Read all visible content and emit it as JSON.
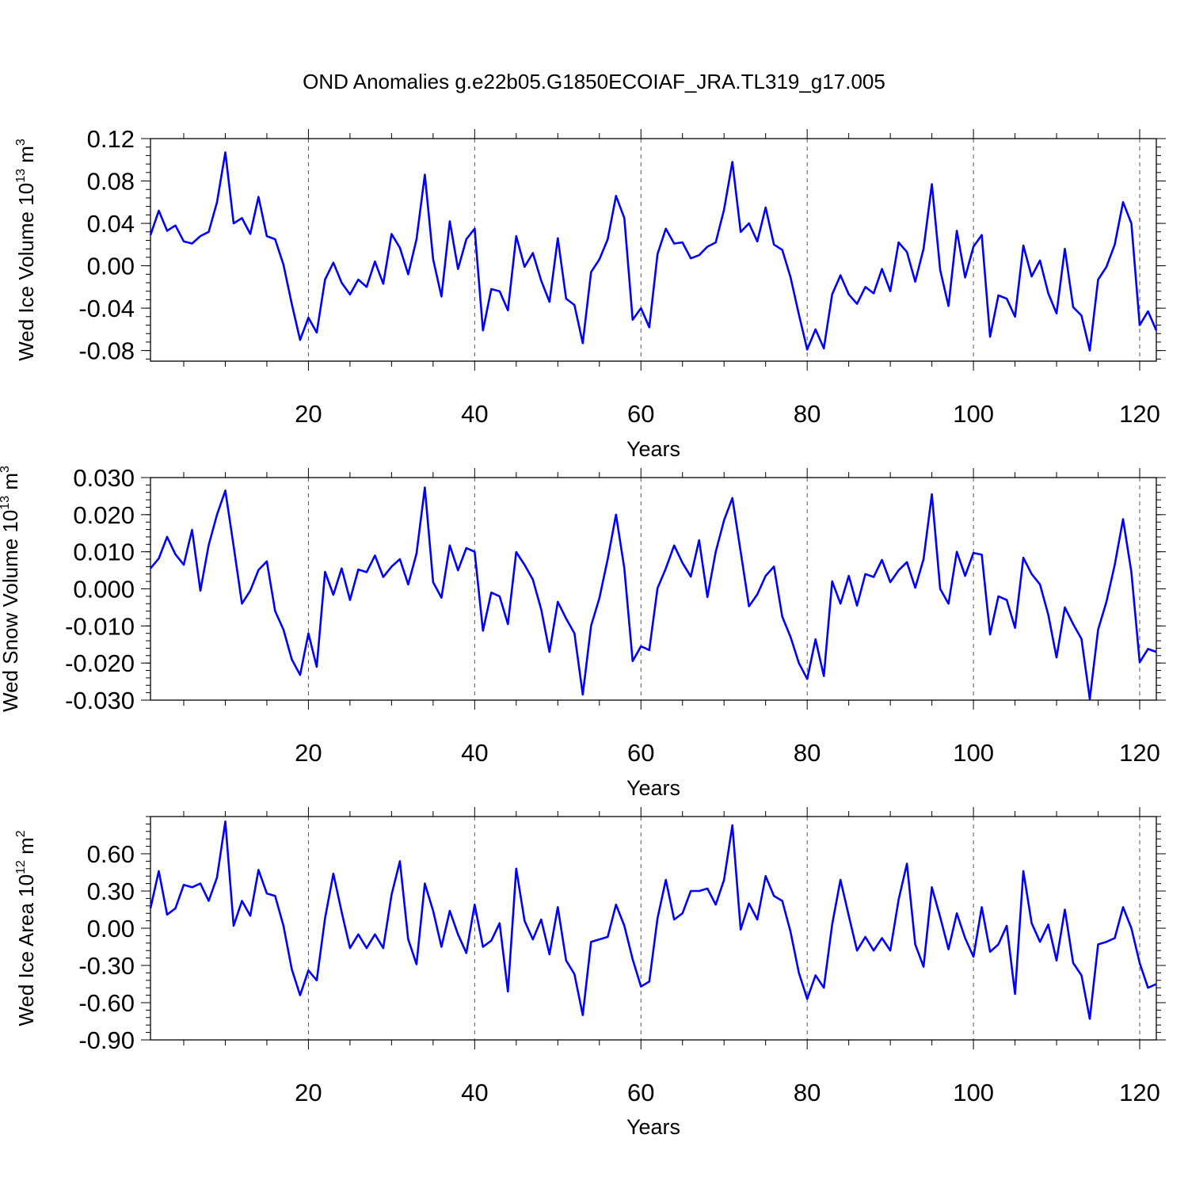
{
  "title": "OND Anomalies g.e22b05.G1850ECOIAF_JRA.TL319_g17.005",
  "colors": {
    "line": "#0000ff",
    "axis": "#000000",
    "refline": "#555555"
  },
  "chart_data": [
    {
      "type": "line",
      "ylabel": {
        "main": "Wed Ice Volume 10",
        "exp": "13",
        "unit_main": " m",
        "unit_exp": "3"
      },
      "xlabel": "Years",
      "xlim": [
        1,
        122
      ],
      "ylim": [
        -0.09,
        0.12
      ],
      "xticks": [
        20,
        40,
        60,
        80,
        100,
        120
      ],
      "xtick_labels": [
        "20",
        "40",
        "60",
        "80",
        "100",
        "120"
      ],
      "yticks": [
        -0.08,
        -0.04,
        0.0,
        0.04,
        0.08,
        0.12
      ],
      "ytick_labels": [
        "-0.08",
        "-0.04",
        "0.00",
        "0.04",
        "0.08",
        "0.12"
      ],
      "ref_lines_x": [
        20,
        40,
        60,
        80,
        100,
        120
      ],
      "series": [
        {
          "x_start": 1,
          "values": [
            0.029,
            0.052,
            0.033,
            0.038,
            0.023,
            0.021,
            0.028,
            0.032,
            0.06,
            0.107,
            0.04,
            0.045,
            0.03,
            0.065,
            0.028,
            0.025,
            0.001,
            -0.036,
            -0.07,
            -0.049,
            -0.063,
            -0.013,
            0.003,
            -0.016,
            -0.027,
            -0.013,
            -0.02,
            0.004,
            -0.017,
            0.03,
            0.017,
            -0.008,
            0.025,
            0.086,
            0.006,
            -0.029,
            0.042,
            -0.003,
            0.025,
            0.035,
            -0.061,
            -0.022,
            -0.024,
            -0.042,
            0.028,
            -0.001,
            0.012,
            -0.014,
            -0.034,
            0.026,
            -0.031,
            -0.037,
            -0.073,
            -0.006,
            0.006,
            0.025,
            0.066,
            0.045,
            -0.051,
            -0.04,
            -0.058,
            0.011,
            0.035,
            0.021,
            0.022,
            0.007,
            0.01,
            0.018,
            0.022,
            0.053,
            0.098,
            0.032,
            0.04,
            0.023,
            0.055,
            0.02,
            0.015,
            -0.011,
            -0.046,
            -0.079,
            -0.06,
            -0.078,
            -0.027,
            -0.009,
            -0.027,
            -0.036,
            -0.02,
            -0.026,
            -0.003,
            -0.024,
            0.022,
            0.013,
            -0.015,
            0.016,
            0.077,
            -0.004,
            -0.038,
            0.033,
            -0.011,
            0.018,
            0.029,
            -0.067,
            -0.028,
            -0.031,
            -0.048,
            0.019,
            -0.01,
            0.005,
            -0.026,
            -0.045,
            0.016,
            -0.039,
            -0.047,
            -0.08,
            -0.013,
            -0.001,
            0.02,
            0.06,
            0.04,
            -0.056,
            -0.043,
            -0.061
          ]
        }
      ]
    },
    {
      "type": "line",
      "ylabel": {
        "main": "Wed Snow Volume 10",
        "exp": "13",
        "unit_main": " m",
        "unit_exp": "3"
      },
      "xlabel": "Years",
      "xlim": [
        1,
        122
      ],
      "ylim": [
        -0.03,
        0.03
      ],
      "xticks": [
        20,
        40,
        60,
        80,
        100,
        120
      ],
      "xtick_labels": [
        "20",
        "40",
        "60",
        "80",
        "100",
        "120"
      ],
      "yticks": [
        -0.03,
        -0.02,
        -0.01,
        0.0,
        0.01,
        0.02,
        0.03
      ],
      "ytick_labels": [
        "-0.030",
        "-0.020",
        "-0.010",
        "0.000",
        "0.010",
        "0.020",
        "0.030"
      ],
      "ref_lines_x": [
        20,
        40,
        60,
        80,
        100,
        120
      ],
      "series": [
        {
          "x_start": 1,
          "values": [
            0.0055,
            0.0082,
            0.014,
            0.0093,
            0.0065,
            0.0159,
            -0.0005,
            0.0118,
            0.02,
            0.0265,
            0.0115,
            -0.004,
            -0.0005,
            0.0051,
            0.0074,
            -0.006,
            -0.011,
            -0.019,
            -0.0232,
            -0.012,
            -0.021,
            0.0046,
            -0.0016,
            0.0055,
            -0.003,
            0.0052,
            0.0045,
            0.009,
            0.0032,
            0.006,
            0.008,
            0.0012,
            0.0095,
            0.0273,
            0.0018,
            -0.0024,
            0.0117,
            0.005,
            0.011,
            0.01,
            -0.0113,
            -0.001,
            -0.002,
            -0.0095,
            0.0099,
            0.0065,
            0.0025,
            -0.0055,
            -0.017,
            -0.0035,
            -0.008,
            -0.012,
            -0.0285,
            -0.01,
            -0.0025,
            0.008,
            0.02,
            0.0055,
            -0.0195,
            -0.0155,
            -0.0165,
            0.0002,
            0.0055,
            0.0117,
            0.007,
            0.0033,
            0.0131,
            -0.0022,
            0.01,
            0.0185,
            0.0245,
            0.01,
            -0.0047,
            -0.0015,
            0.0035,
            0.006,
            -0.0075,
            -0.013,
            -0.02,
            -0.0243,
            -0.0136,
            -0.0235,
            0.002,
            -0.004,
            0.0035,
            -0.0045,
            0.004,
            0.0032,
            0.0078,
            0.0018,
            0.005,
            0.0072,
            0.0003,
            0.008,
            0.0255,
            0.0,
            -0.004,
            0.01,
            0.0035,
            0.0097,
            0.0092,
            -0.0123,
            -0.002,
            -0.003,
            -0.0105,
            0.0084,
            0.004,
            0.0012,
            -0.007,
            -0.0185,
            -0.005,
            -0.0095,
            -0.0135,
            -0.0297,
            -0.011,
            -0.0035,
            0.0065,
            0.0188,
            0.0045,
            -0.0198,
            -0.0162,
            -0.017
          ]
        }
      ]
    },
    {
      "type": "line",
      "ylabel": {
        "main": "Wed Ice Area 10",
        "exp": "12",
        "unit_main": " m",
        "unit_exp": "2"
      },
      "xlabel": "Years",
      "xlim": [
        1,
        122
      ],
      "ylim": [
        -0.9,
        0.9
      ],
      "xticks": [
        20,
        40,
        60,
        80,
        100,
        120
      ],
      "xtick_labels": [
        "20",
        "40",
        "60",
        "80",
        "100",
        "120"
      ],
      "yticks": [
        -0.9,
        -0.6,
        -0.3,
        0.0,
        0.3,
        0.6
      ],
      "ytick_labels": [
        "-0.90",
        "-0.60",
        "-0.30",
        "0.00",
        "0.30",
        "0.60"
      ],
      "ref_lines_x": [
        20,
        40,
        60,
        80,
        100,
        120
      ],
      "series": [
        {
          "x_start": 1,
          "values": [
            0.16,
            0.46,
            0.11,
            0.16,
            0.35,
            0.33,
            0.36,
            0.22,
            0.41,
            0.86,
            0.02,
            0.22,
            0.1,
            0.47,
            0.28,
            0.26,
            0.02,
            -0.33,
            -0.54,
            -0.34,
            -0.42,
            0.08,
            0.44,
            0.13,
            -0.16,
            -0.05,
            -0.16,
            -0.05,
            -0.16,
            0.27,
            0.54,
            -0.09,
            -0.29,
            0.36,
            0.14,
            -0.15,
            0.14,
            -0.05,
            -0.2,
            0.19,
            -0.15,
            -0.1,
            0.04,
            -0.51,
            0.48,
            0.06,
            -0.09,
            0.07,
            -0.21,
            0.17,
            -0.26,
            -0.37,
            -0.7,
            -0.11,
            -0.09,
            -0.07,
            0.19,
            0.02,
            -0.25,
            -0.47,
            -0.43,
            0.08,
            0.39,
            0.07,
            0.12,
            0.3,
            0.3,
            0.32,
            0.19,
            0.39,
            0.83,
            -0.01,
            0.2,
            0.07,
            0.42,
            0.26,
            0.22,
            -0.03,
            -0.36,
            -0.57,
            -0.38,
            -0.48,
            0.03,
            0.39,
            0.1,
            -0.18,
            -0.07,
            -0.18,
            -0.08,
            -0.18,
            0.23,
            0.52,
            -0.13,
            -0.31,
            0.33,
            0.09,
            -0.17,
            0.12,
            -0.08,
            -0.23,
            0.17,
            -0.19,
            -0.13,
            0.02,
            -0.53,
            0.46,
            0.04,
            -0.11,
            0.03,
            -0.26,
            0.15,
            -0.28,
            -0.38,
            -0.73,
            -0.13,
            -0.11,
            -0.08,
            0.17,
            0.0,
            -0.28,
            -0.48,
            -0.45
          ]
        }
      ]
    }
  ]
}
